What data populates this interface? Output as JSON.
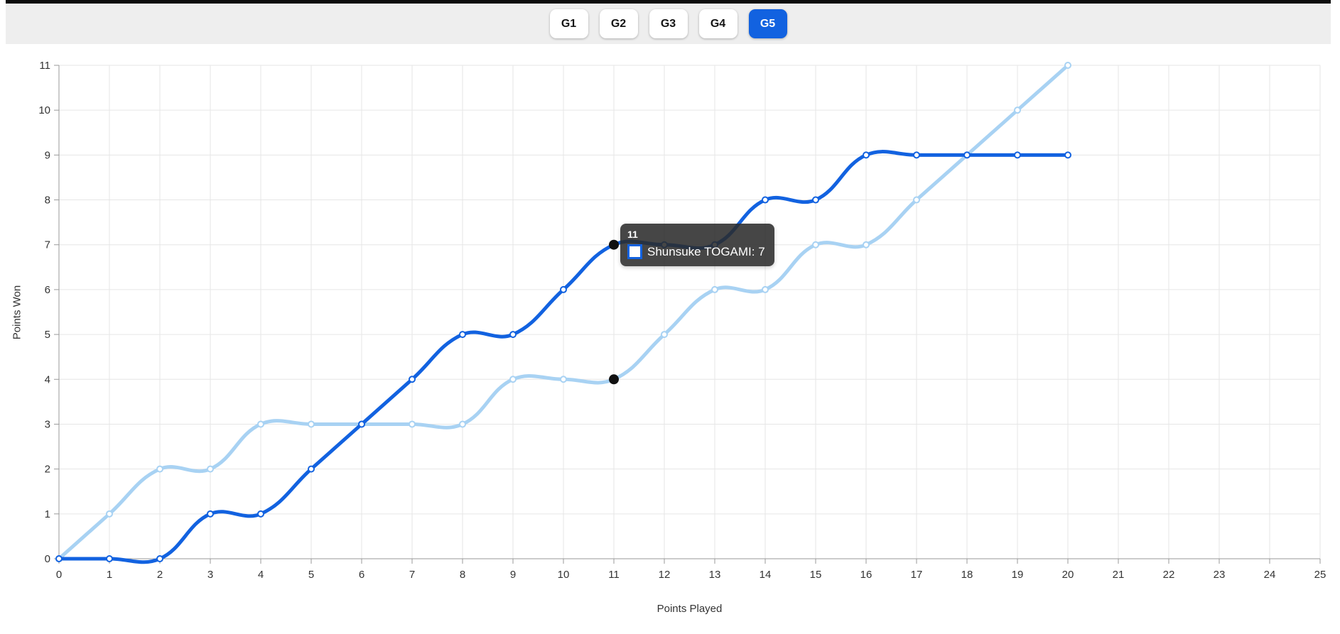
{
  "colors": {
    "accent": "#1262e0",
    "series_dark_blue": "#1262e0",
    "series_light_blue": "#a8d2f3",
    "grid": "#e6e6e6",
    "axis": "#999999",
    "tick_text": "#333333",
    "header_bar": "#eeeeee",
    "top_strip": "#0c0c0c",
    "tooltip_bg": "rgba(42,42,42,0.87)",
    "highlight_dot": "#111111"
  },
  "header": {
    "games": [
      {
        "label": "G1",
        "active": false
      },
      {
        "label": "G2",
        "active": false
      },
      {
        "label": "G3",
        "active": false
      },
      {
        "label": "G4",
        "active": false
      },
      {
        "label": "G5",
        "active": true
      }
    ]
  },
  "chart_data": {
    "type": "line",
    "title": "",
    "xlabel": "Points Played",
    "ylabel": "Points Won",
    "xlim": [
      0,
      25
    ],
    "ylim": [
      0,
      11
    ],
    "x_ticks": [
      0,
      1,
      2,
      3,
      4,
      5,
      6,
      7,
      8,
      9,
      10,
      11,
      12,
      13,
      14,
      15,
      16,
      17,
      18,
      19,
      20,
      21,
      22,
      23,
      24,
      25
    ],
    "y_ticks": [
      0,
      1,
      2,
      3,
      4,
      5,
      6,
      7,
      8,
      9,
      10,
      11
    ],
    "grid": true,
    "legend": "none",
    "x": [
      0,
      1,
      2,
      3,
      4,
      5,
      6,
      7,
      8,
      9,
      10,
      11,
      12,
      13,
      14,
      15,
      16,
      17,
      18,
      19,
      20
    ],
    "series": [
      {
        "name": "Shunsuke TOGAMI",
        "color": "#1262e0",
        "values": [
          0,
          0,
          0,
          1,
          1,
          2,
          3,
          4,
          5,
          5,
          6,
          7,
          7,
          7,
          8,
          8,
          9,
          9,
          9,
          9,
          9
        ]
      },
      {
        "name": "",
        "color": "#a8d2f3",
        "values": [
          0,
          1,
          2,
          2,
          3,
          3,
          3,
          3,
          3,
          4,
          4,
          4,
          5,
          6,
          6,
          7,
          7,
          8,
          9,
          10,
          11
        ]
      }
    ],
    "highlight_x": 11,
    "tooltip": {
      "title": "11",
      "text": "Shunsuke TOGAMI: 7",
      "value": 7
    }
  }
}
